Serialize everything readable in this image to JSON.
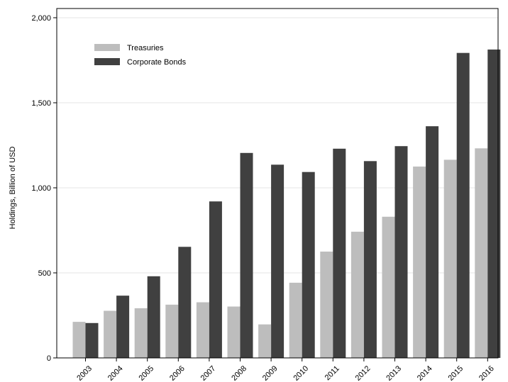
{
  "chart_data": {
    "type": "bar",
    "title": "",
    "xlabel": "",
    "ylabel": "Holdings, Billion of USD",
    "ylim": [
      0,
      2000
    ],
    "yticks": [
      0,
      500,
      1000,
      1500,
      2000
    ],
    "ytick_labels": [
      "0",
      "500",
      "1,000",
      "1,500",
      "2,000"
    ],
    "grid": true,
    "legend_position": "top-left",
    "categories": [
      "2003",
      "2004",
      "2005",
      "2006",
      "2007",
      "2008",
      "2009",
      "2010",
      "2011",
      "2012",
      "2013",
      "2014",
      "2015",
      "2016"
    ],
    "series": [
      {
        "name": "Treasuries",
        "color": "#bdbdbd",
        "values": [
          212,
          277,
          292,
          313,
          327,
          302,
          197,
          442,
          625,
          742,
          830,
          1125,
          1165,
          1232
        ]
      },
      {
        "name": "Corporate Bonds",
        "color": "#404040",
        "values": [
          205,
          366,
          480,
          653,
          920,
          1205,
          1136,
          1093,
          1230,
          1157,
          1245,
          1362,
          1793,
          1813
        ]
      }
    ]
  }
}
